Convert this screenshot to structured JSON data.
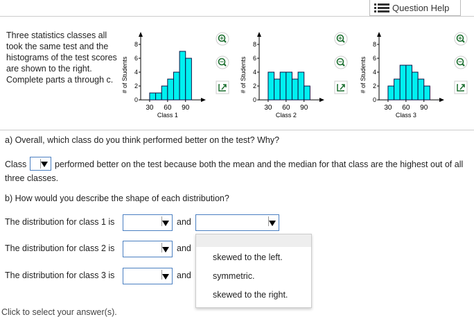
{
  "header": {
    "help_button": "Question Help"
  },
  "problem": {
    "intro": "Three statistics classes all took the same test and the histograms of the test scores are shown to the right. Complete parts a through c."
  },
  "histograms": [
    {
      "type": "histogram",
      "xlabel": "Class 1",
      "ylabel": "# of Students",
      "bins": [
        30,
        40,
        50,
        60,
        70,
        80,
        90,
        100
      ],
      "values": [
        1,
        1,
        2,
        3,
        4,
        7,
        6
      ],
      "color": "#00f0f0",
      "xlim": [
        15,
        110
      ],
      "ylim": [
        0,
        8
      ],
      "xticks": [
        30,
        60,
        90
      ],
      "yticks": [
        0,
        2,
        4,
        6,
        8
      ]
    },
    {
      "type": "histogram",
      "xlabel": "Class 2",
      "ylabel": "# of Students",
      "bins": [
        30,
        40,
        50,
        60,
        70,
        80,
        90,
        100
      ],
      "values": [
        4,
        3,
        4,
        4,
        3,
        4,
        2
      ],
      "color": "#00f0f0",
      "xlim": [
        15,
        110
      ],
      "ylim": [
        0,
        8
      ],
      "xticks": [
        30,
        60,
        90
      ],
      "yticks": [
        0,
        2,
        4,
        6,
        8
      ]
    },
    {
      "type": "histogram",
      "xlabel": "Class 3",
      "ylabel": "# of Students",
      "bins": [
        30,
        40,
        50,
        60,
        70,
        80,
        90,
        100
      ],
      "values": [
        2,
        3,
        5,
        5,
        4,
        3,
        2
      ],
      "color": "#00f0f0",
      "xlim": [
        15,
        110
      ],
      "ylim": [
        0,
        8
      ],
      "xticks": [
        30,
        60,
        90
      ],
      "yticks": [
        0,
        2,
        4,
        6,
        8
      ]
    }
  ],
  "part_a": {
    "question": "a) Overall, which class do you think performed better on the test? Why?",
    "prefix": "Class",
    "suffix": "performed better on the test because both the mean and the median for that class are the highest out of all three classes."
  },
  "part_b": {
    "question": "b) How would you describe the shape of each distribution?",
    "rows": [
      {
        "label": "The distribution for class 1 is",
        "joiner": "and"
      },
      {
        "label": "The distribution for class 2 is",
        "joiner": "and"
      },
      {
        "label": "The distribution for class 3 is",
        "joiner": "and"
      }
    ],
    "options": [
      "skewed to the left.",
      "symmetric.",
      "skewed to the right."
    ]
  },
  "footer": "Click to select your answer(s)."
}
